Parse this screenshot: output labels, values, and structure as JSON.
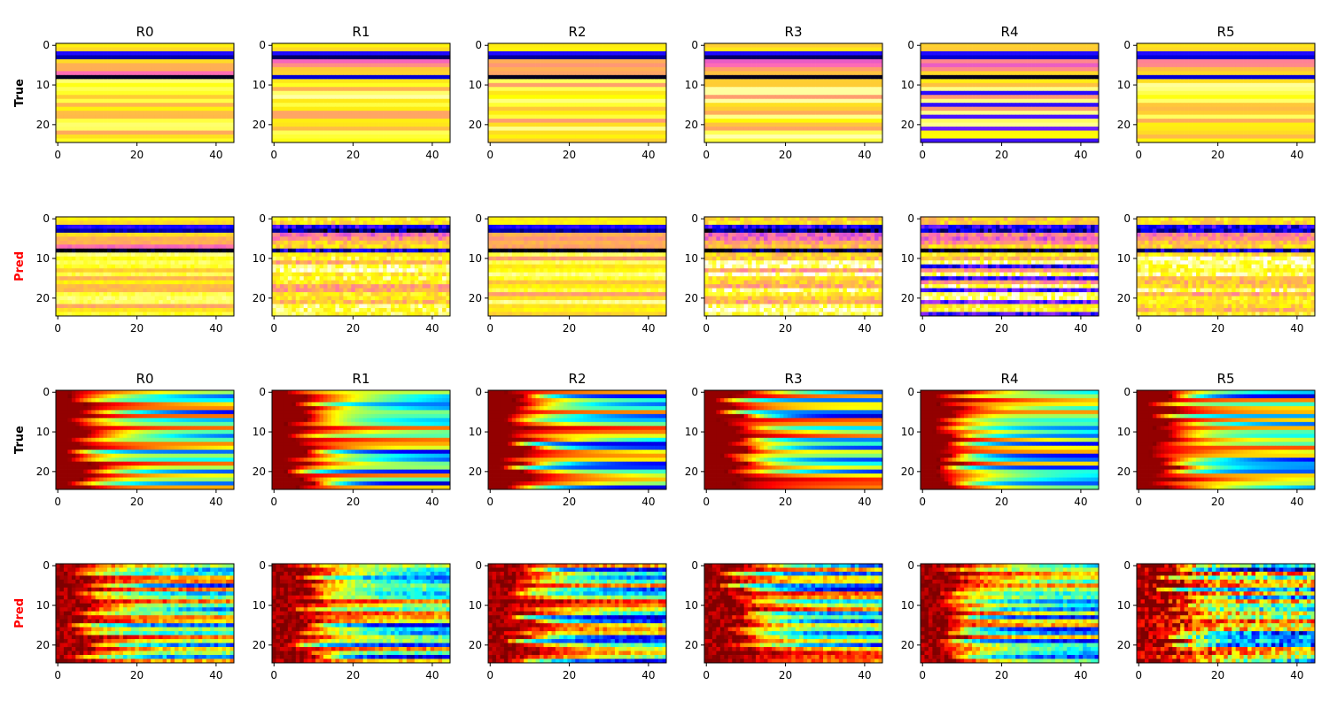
{
  "colormaps": {
    "gnuplot2_like": [
      "#000000",
      "#0000ff",
      "#9a2bff",
      "#ff6bb4",
      "#ffb64c",
      "#ffff00",
      "#ffffff"
    ],
    "jet": [
      "#00007f",
      "#0000ff",
      "#007fff",
      "#00ffff",
      "#7fff7f",
      "#ffff00",
      "#ff7f00",
      "#ff0000",
      "#7f0000"
    ]
  },
  "chart_data": [
    {
      "type": "heatmap",
      "group": "top",
      "colormap": "gnuplot2_like",
      "panel_titles": [
        "R0",
        "R1",
        "R2",
        "R3",
        "R4",
        "R5"
      ],
      "row_labels": [
        {
          "text": "True",
          "color": "#000000"
        },
        {
          "text": "Pred",
          "color": "#ff0000"
        }
      ],
      "grid_shape": [
        25,
        45
      ],
      "xlim": [
        -0.5,
        44.5
      ],
      "ylim": [
        24.5,
        -0.5
      ],
      "x_ticks": [
        0,
        20,
        40
      ],
      "y_ticks": [
        0,
        10,
        20
      ],
      "x_tick_labels": [
        "0",
        "20",
        "40"
      ],
      "y_tick_labels": [
        "0",
        "10",
        "20"
      ]
    },
    {
      "type": "heatmap",
      "group": "bottom",
      "colormap": "jet",
      "panel_titles": [
        "R0",
        "R1",
        "R2",
        "R3",
        "R4",
        "R5"
      ],
      "row_labels": [
        {
          "text": "True",
          "color": "#000000"
        },
        {
          "text": "Pred",
          "color": "#ff0000"
        }
      ],
      "grid_shape": [
        25,
        45
      ],
      "xlim": [
        -0.5,
        44.5
      ],
      "ylim": [
        24.5,
        -0.5
      ],
      "x_ticks": [
        0,
        20,
        40
      ],
      "y_ticks": [
        0,
        10,
        20
      ],
      "x_tick_labels": [
        "0",
        "20",
        "40"
      ],
      "y_tick_labels": [
        "0",
        "10",
        "20"
      ]
    }
  ]
}
